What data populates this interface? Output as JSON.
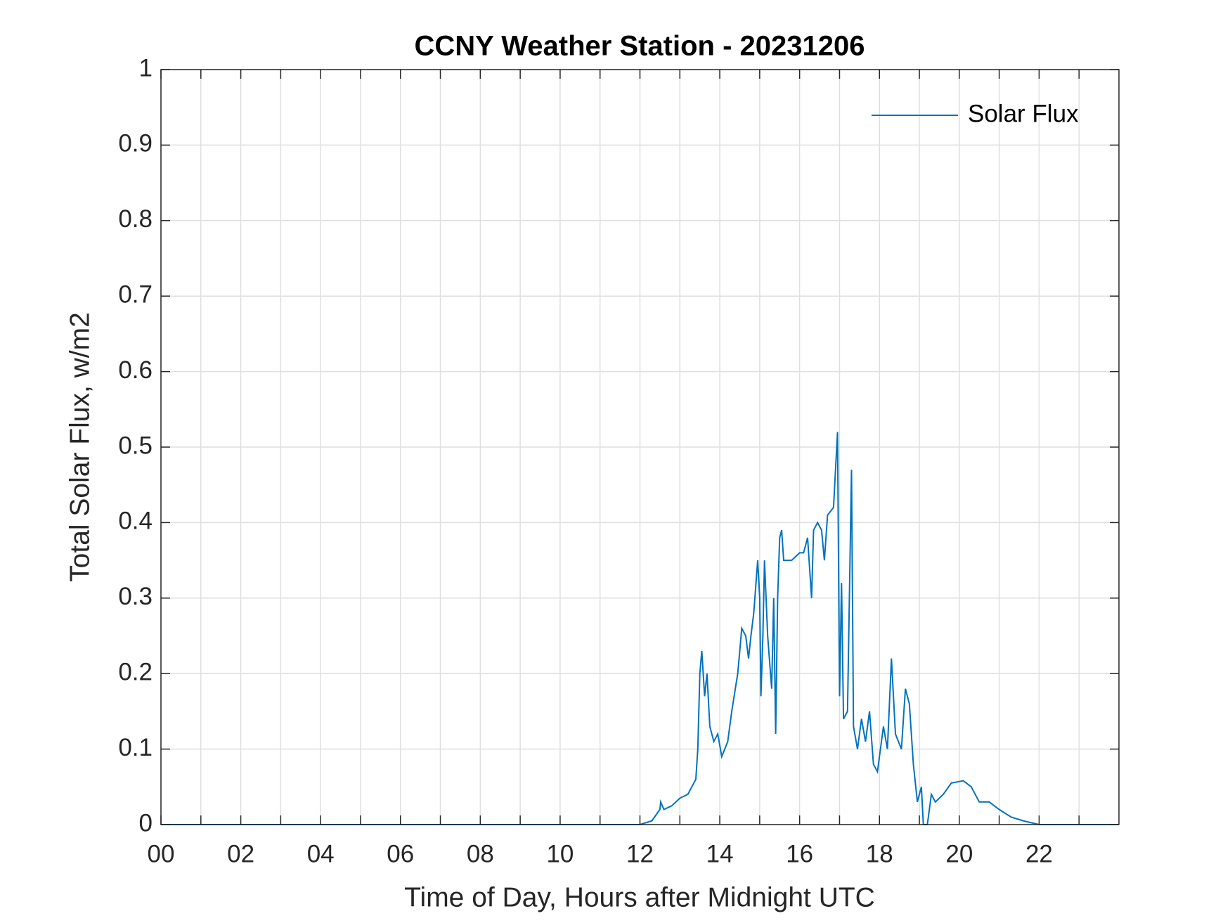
{
  "chart_data": {
    "type": "line",
    "title": "CCNY Weather Station - 20231206",
    "xlabel": "Time of Day, Hours after Midnight UTC",
    "ylabel": "Total Solar Flux, w/m2",
    "x": [
      0,
      12.0,
      12.3,
      12.5,
      12.52,
      12.6,
      12.8,
      13.0,
      13.2,
      13.3,
      13.4,
      13.45,
      13.5,
      13.55,
      13.62,
      13.68,
      13.75,
      13.85,
      13.95,
      14.05,
      14.2,
      14.3,
      14.45,
      14.5,
      14.55,
      14.65,
      14.72,
      14.78,
      14.85,
      14.95,
      15.0,
      15.03,
      15.08,
      15.12,
      15.2,
      15.3,
      15.35,
      15.4,
      15.45,
      15.5,
      15.55,
      15.6,
      15.8,
      16.0,
      16.1,
      16.2,
      16.3,
      16.35,
      16.45,
      16.55,
      16.62,
      16.7,
      16.85,
      16.95,
      17.0,
      17.05,
      17.1,
      17.2,
      17.3,
      17.35,
      17.45,
      17.55,
      17.65,
      17.75,
      17.85,
      17.95,
      18.1,
      18.2,
      18.3,
      18.4,
      18.55,
      18.65,
      18.75,
      18.85,
      18.95,
      19.05,
      19.1,
      19.2,
      19.3,
      19.4,
      19.6,
      19.8,
      20.1,
      20.3,
      20.5,
      20.75,
      21.0,
      21.3,
      21.6,
      22.0,
      23.98
    ],
    "series": [
      {
        "name": "Solar Flux",
        "color": "#0072bd",
        "values": [
          0,
          0,
          0.005,
          0.02,
          0.03,
          0.02,
          0.025,
          0.035,
          0.04,
          0.05,
          0.06,
          0.1,
          0.2,
          0.23,
          0.17,
          0.2,
          0.13,
          0.11,
          0.12,
          0.09,
          0.11,
          0.15,
          0.2,
          0.23,
          0.26,
          0.25,
          0.22,
          0.25,
          0.28,
          0.35,
          0.3,
          0.17,
          0.25,
          0.35,
          0.25,
          0.18,
          0.3,
          0.12,
          0.3,
          0.38,
          0.39,
          0.35,
          0.35,
          0.36,
          0.36,
          0.38,
          0.3,
          0.39,
          0.4,
          0.39,
          0.35,
          0.41,
          0.42,
          0.52,
          0.17,
          0.32,
          0.14,
          0.15,
          0.47,
          0.13,
          0.1,
          0.14,
          0.11,
          0.15,
          0.08,
          0.07,
          0.13,
          0.1,
          0.22,
          0.12,
          0.1,
          0.18,
          0.16,
          0.08,
          0.03,
          0.05,
          0,
          0,
          0.04,
          0.03,
          0.04,
          0.055,
          0.058,
          0.05,
          0.03,
          0.03,
          0.02,
          0.01,
          0.005,
          0,
          0
        ]
      }
    ],
    "xlim": [
      0,
      24
    ],
    "xticks": [
      {
        "value": 0,
        "label": "00"
      },
      {
        "value": 2,
        "label": "02"
      },
      {
        "value": 4,
        "label": "04"
      },
      {
        "value": 6,
        "label": "06"
      },
      {
        "value": 8,
        "label": "08"
      },
      {
        "value": 10,
        "label": "10"
      },
      {
        "value": 12,
        "label": "12"
      },
      {
        "value": 14,
        "label": "14"
      },
      {
        "value": 16,
        "label": "16"
      },
      {
        "value": 18,
        "label": "18"
      },
      {
        "value": 20,
        "label": "20"
      },
      {
        "value": 22,
        "label": "22"
      }
    ],
    "xminorticks": [
      1,
      3,
      5,
      7,
      9,
      11,
      13,
      15,
      17,
      19,
      21,
      23
    ],
    "ylim": [
      0,
      1
    ],
    "yticks": [
      0,
      0.1,
      0.2,
      0.3,
      0.4,
      0.5,
      0.6,
      0.7,
      0.8,
      0.9,
      1
    ],
    "grid": true,
    "legend": "northeast"
  }
}
